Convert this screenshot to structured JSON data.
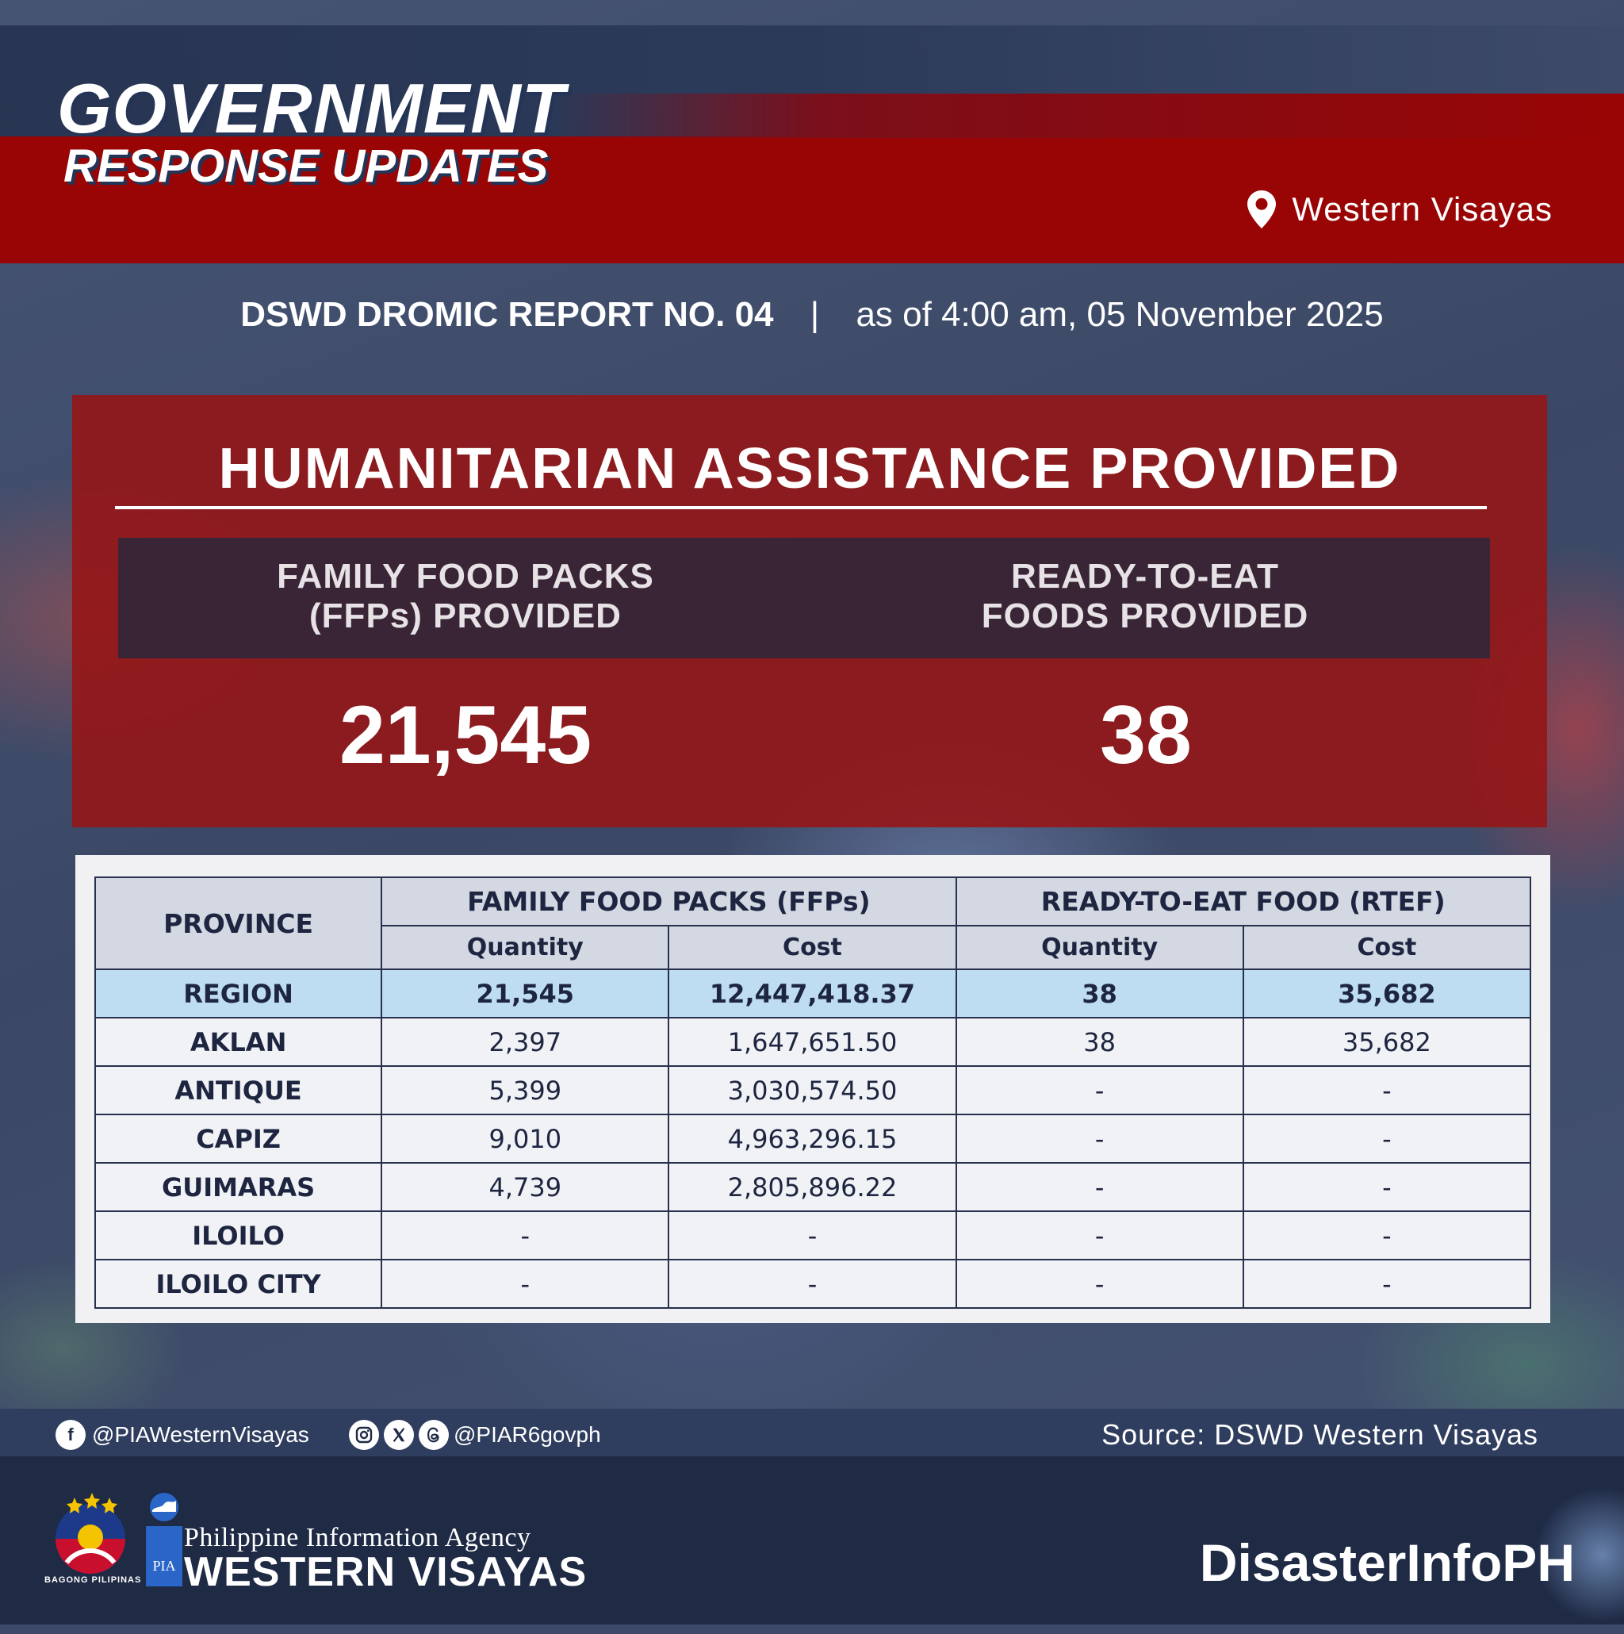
{
  "header": {
    "title_line1": "GOVERNMENT",
    "title_line2": "RESPONSE UPDATES",
    "location": "Western Visayas",
    "location_icon": "map-pin-icon"
  },
  "report": {
    "name": "DSWD DROMIC REPORT NO. 04",
    "separator": "|",
    "as_of": "as of 4:00 am, 05 November 2025"
  },
  "assistance": {
    "title": "HUMANITARIAN ASSISTANCE PROVIDED",
    "ffp_label_line1": "FAMILY FOOD PACKS",
    "ffp_label_line2": "(FFPs) PROVIDED",
    "ffp_value": "21,545",
    "rte_label_line1": "READY-TO-EAT",
    "rte_label_line2": "FOODS PROVIDED",
    "rte_value": "38"
  },
  "table": {
    "province_header": "PROVINCE",
    "ffp_header": "FAMILY FOOD PACKS (FFPs)",
    "rtef_header": "READY-TO-EAT FOOD (RTEF)",
    "quantity_header": "Quantity",
    "cost_header": "Cost",
    "rows": [
      {
        "province": "REGION",
        "ffp_qty": "21,545",
        "ffp_cost": "12,447,418.37",
        "rtef_qty": "38",
        "rtef_cost": "35,682"
      },
      {
        "province": "AKLAN",
        "ffp_qty": "2,397",
        "ffp_cost": "1,647,651.50",
        "rtef_qty": "38",
        "rtef_cost": "35,682"
      },
      {
        "province": "ANTIQUE",
        "ffp_qty": "5,399",
        "ffp_cost": "3,030,574.50",
        "rtef_qty": "-",
        "rtef_cost": "-"
      },
      {
        "province": "CAPIZ",
        "ffp_qty": "9,010",
        "ffp_cost": "4,963,296.15",
        "rtef_qty": "-",
        "rtef_cost": "-"
      },
      {
        "province": "GUIMARAS",
        "ffp_qty": "4,739",
        "ffp_cost": "2,805,896.22",
        "rtef_qty": "-",
        "rtef_cost": "-"
      },
      {
        "province": "ILOILO",
        "ffp_qty": "-",
        "ffp_cost": "-",
        "rtef_qty": "-",
        "rtef_cost": "-"
      },
      {
        "province": "ILOILO CITY",
        "ffp_qty": "-",
        "ffp_cost": "-",
        "rtef_qty": "-",
        "rtef_cost": "-"
      }
    ]
  },
  "footer": {
    "facebook_handle": "@PIAWesternVisayas",
    "other_handle": "@PIAR6govph",
    "social_icons": [
      "facebook-icon",
      "instagram-icon",
      "x-icon",
      "threads-icon"
    ],
    "source": "Source: DSWD Western Visayas",
    "agency_name": "Philippine Information Agency",
    "agency_region": "WESTERN VISAYAS",
    "bagong_pilipinas": "BAGONG PILIPINAS",
    "pia_mark": "PIA",
    "brand": "DisasterInfoPH"
  },
  "colors": {
    "red_band": "#990505",
    "panel_red": "#961414",
    "label_bar": "#392536",
    "navy": "#1f2a45",
    "region_row": "#bedcf2"
  }
}
